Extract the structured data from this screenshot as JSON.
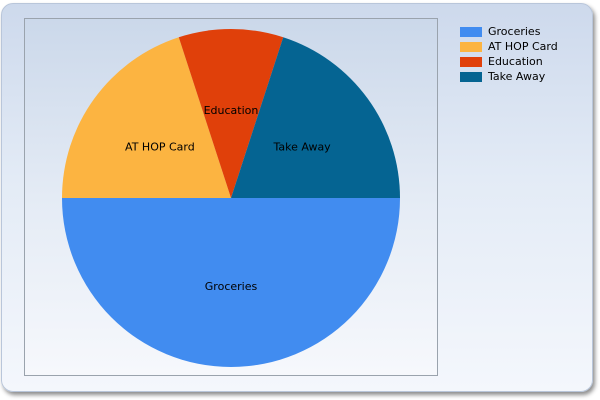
{
  "chart_data": {
    "type": "pie",
    "categories": [
      "Groceries",
      "AT HOP Card",
      "Education",
      "Take Away"
    ],
    "values": [
      50,
      20,
      10,
      20
    ],
    "colors": [
      "#418cf0",
      "#fcb441",
      "#e0400a",
      "#056492"
    ],
    "legend_placement": "top-right",
    "slice_labels_inside": true
  },
  "legend": {
    "items": [
      "Groceries",
      "AT HOP Card",
      "Education",
      "Take Away"
    ]
  }
}
